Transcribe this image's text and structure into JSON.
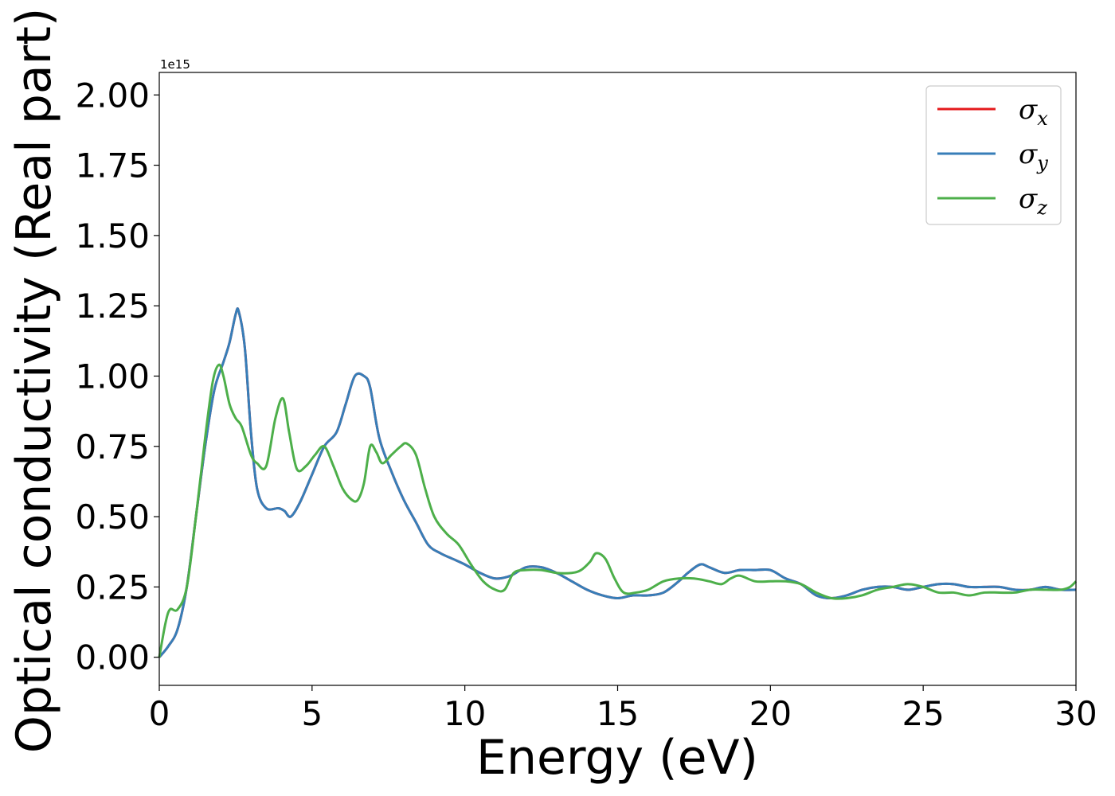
{
  "chart_data": {
    "type": "line",
    "title": "",
    "xlabel": "Energy (eV)",
    "ylabel": "Optical conductivity (Real part)",
    "y_offset_label": "1e15",
    "xlim": [
      0,
      30
    ],
    "ylim": [
      -0.1,
      2.08
    ],
    "xticks": [
      0,
      5,
      10,
      15,
      20,
      25,
      30
    ],
    "yticks": [
      0.0,
      0.25,
      0.5,
      0.75,
      1.0,
      1.25,
      1.5,
      1.75,
      2.0
    ],
    "ytick_labels": [
      "0.00",
      "0.25",
      "0.50",
      "0.75",
      "1.00",
      "1.25",
      "1.50",
      "1.75",
      "2.00"
    ],
    "xtick_labels": [
      "0",
      "5",
      "10",
      "15",
      "20",
      "25",
      "30"
    ],
    "grid": false,
    "legend_position": "top-right",
    "series": [
      {
        "name": "σx",
        "base": "σ",
        "sub": "x",
        "color": "#e41a1c",
        "x": [
          0,
          0.3,
          0.6,
          0.9,
          1.2,
          1.5,
          1.8,
          2.1,
          2.3,
          2.5,
          2.6,
          2.8,
          3.0,
          3.2,
          3.5,
          3.9,
          4.1,
          4.3,
          4.6,
          5.0,
          5.4,
          5.8,
          6.1,
          6.4,
          6.7,
          6.9,
          7.2,
          7.6,
          8.0,
          8.4,
          8.8,
          9.2,
          9.6,
          10.0,
          10.5,
          11.0,
          11.5,
          12.0,
          12.5,
          13.0,
          13.5,
          14.0,
          14.5,
          15.0,
          15.5,
          16.0,
          16.5,
          17.0,
          17.3,
          17.7,
          18.0,
          18.5,
          19.0,
          19.5,
          20.0,
          20.5,
          21.0,
          21.5,
          22.0,
          22.5,
          23.0,
          23.5,
          24.0,
          24.5,
          25.0,
          25.5,
          26.0,
          26.5,
          27.0,
          27.5,
          28.0,
          28.5,
          29.0,
          29.5,
          30.0
        ],
        "y": [
          0.0,
          0.04,
          0.1,
          0.25,
          0.5,
          0.75,
          0.95,
          1.05,
          1.12,
          1.22,
          1.23,
          1.1,
          0.8,
          0.6,
          0.53,
          0.53,
          0.52,
          0.5,
          0.55,
          0.65,
          0.75,
          0.8,
          0.9,
          1.0,
          1.0,
          0.96,
          0.78,
          0.66,
          0.56,
          0.48,
          0.4,
          0.37,
          0.35,
          0.33,
          0.3,
          0.28,
          0.29,
          0.32,
          0.32,
          0.3,
          0.27,
          0.24,
          0.22,
          0.21,
          0.22,
          0.22,
          0.23,
          0.27,
          0.3,
          0.33,
          0.32,
          0.3,
          0.31,
          0.31,
          0.31,
          0.28,
          0.26,
          0.22,
          0.21,
          0.22,
          0.24,
          0.25,
          0.25,
          0.24,
          0.25,
          0.26,
          0.26,
          0.25,
          0.25,
          0.25,
          0.24,
          0.24,
          0.25,
          0.24,
          0.24
        ]
      },
      {
        "name": "σy",
        "base": "σ",
        "sub": "y",
        "color": "#377eb8",
        "x": [
          0,
          0.3,
          0.6,
          0.9,
          1.2,
          1.5,
          1.8,
          2.1,
          2.3,
          2.5,
          2.6,
          2.8,
          3.0,
          3.2,
          3.5,
          3.9,
          4.1,
          4.3,
          4.6,
          5.0,
          5.4,
          5.8,
          6.1,
          6.4,
          6.7,
          6.9,
          7.2,
          7.6,
          8.0,
          8.4,
          8.8,
          9.2,
          9.6,
          10.0,
          10.5,
          11.0,
          11.5,
          12.0,
          12.5,
          13.0,
          13.5,
          14.0,
          14.5,
          15.0,
          15.5,
          16.0,
          16.5,
          17.0,
          17.3,
          17.7,
          18.0,
          18.5,
          19.0,
          19.5,
          20.0,
          20.5,
          21.0,
          21.5,
          22.0,
          22.5,
          23.0,
          23.5,
          24.0,
          24.5,
          25.0,
          25.5,
          26.0,
          26.5,
          27.0,
          27.5,
          28.0,
          28.5,
          29.0,
          29.5,
          30.0
        ],
        "y": [
          0.0,
          0.04,
          0.1,
          0.25,
          0.5,
          0.75,
          0.95,
          1.05,
          1.12,
          1.22,
          1.23,
          1.1,
          0.8,
          0.6,
          0.53,
          0.53,
          0.52,
          0.5,
          0.55,
          0.65,
          0.75,
          0.8,
          0.9,
          1.0,
          1.0,
          0.96,
          0.78,
          0.66,
          0.56,
          0.48,
          0.4,
          0.37,
          0.35,
          0.33,
          0.3,
          0.28,
          0.29,
          0.32,
          0.32,
          0.3,
          0.27,
          0.24,
          0.22,
          0.21,
          0.22,
          0.22,
          0.23,
          0.27,
          0.3,
          0.33,
          0.32,
          0.3,
          0.31,
          0.31,
          0.31,
          0.28,
          0.26,
          0.22,
          0.21,
          0.22,
          0.24,
          0.25,
          0.25,
          0.24,
          0.25,
          0.26,
          0.26,
          0.25,
          0.25,
          0.25,
          0.24,
          0.24,
          0.25,
          0.24,
          0.24
        ]
      },
      {
        "name": "σz",
        "base": "σ",
        "sub": "z",
        "color": "#4daf4a",
        "x": [
          0,
          0.2,
          0.35,
          0.6,
          0.9,
          1.2,
          1.5,
          1.75,
          1.95,
          2.1,
          2.3,
          2.5,
          2.7,
          3.0,
          3.2,
          3.5,
          3.8,
          4.05,
          4.25,
          4.5,
          4.8,
          5.1,
          5.4,
          5.7,
          6.0,
          6.3,
          6.5,
          6.7,
          6.9,
          7.1,
          7.3,
          7.6,
          7.9,
          8.1,
          8.4,
          8.7,
          9.0,
          9.4,
          9.8,
          10.2,
          10.6,
          11.0,
          11.3,
          11.6,
          12.0,
          12.5,
          13.0,
          13.5,
          13.8,
          14.1,
          14.3,
          14.6,
          14.9,
          15.2,
          15.6,
          16.0,
          16.5,
          17.0,
          17.5,
          18.0,
          18.4,
          18.7,
          19.0,
          19.5,
          20.0,
          20.5,
          21.0,
          21.5,
          22.0,
          22.5,
          23.0,
          23.5,
          24.0,
          24.5,
          25.0,
          25.5,
          26.0,
          26.5,
          27.0,
          27.5,
          28.0,
          28.5,
          29.0,
          29.5,
          29.8,
          30.0
        ],
        "y": [
          0.0,
          0.12,
          0.17,
          0.17,
          0.25,
          0.5,
          0.78,
          0.98,
          1.04,
          1.0,
          0.9,
          0.85,
          0.82,
          0.72,
          0.69,
          0.68,
          0.85,
          0.92,
          0.8,
          0.67,
          0.68,
          0.72,
          0.75,
          0.68,
          0.6,
          0.56,
          0.56,
          0.62,
          0.75,
          0.73,
          0.69,
          0.72,
          0.75,
          0.76,
          0.72,
          0.6,
          0.5,
          0.44,
          0.4,
          0.33,
          0.27,
          0.24,
          0.24,
          0.3,
          0.31,
          0.31,
          0.3,
          0.3,
          0.31,
          0.34,
          0.37,
          0.35,
          0.28,
          0.23,
          0.23,
          0.24,
          0.27,
          0.28,
          0.28,
          0.27,
          0.26,
          0.28,
          0.29,
          0.27,
          0.27,
          0.27,
          0.26,
          0.23,
          0.21,
          0.21,
          0.22,
          0.24,
          0.25,
          0.26,
          0.25,
          0.23,
          0.23,
          0.22,
          0.23,
          0.23,
          0.23,
          0.24,
          0.24,
          0.24,
          0.25,
          0.27
        ]
      }
    ]
  }
}
